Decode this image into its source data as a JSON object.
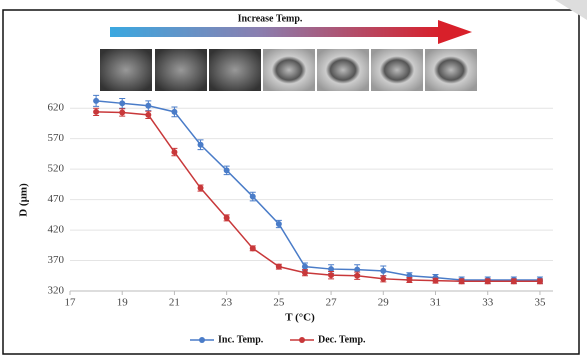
{
  "chart_data": {
    "type": "line",
    "banner": "Increase Temp.",
    "xlabel": "T (°C)",
    "ylabel": "D (µm)",
    "x": [
      18,
      19,
      20,
      21,
      22,
      23,
      24,
      25,
      26,
      27,
      28,
      29,
      30,
      31,
      32,
      33,
      34,
      35
    ],
    "series": [
      {
        "name": "Inc. Temp.",
        "color": "#4a7cc8",
        "values": [
          632,
          628,
          624,
          614,
          560,
          518,
          475,
          430,
          360,
          356,
          355,
          353,
          345,
          342,
          338,
          338,
          338,
          338
        ],
        "errors": [
          9,
          8,
          8,
          8,
          8,
          7,
          7,
          6,
          6,
          7,
          8,
          8,
          5,
          5,
          5,
          5,
          5,
          5
        ]
      },
      {
        "name": "Dec. Temp.",
        "color": "#c8383a",
        "values": [
          614,
          613,
          609,
          548,
          489,
          440,
          390,
          360,
          350,
          346,
          345,
          340,
          338,
          337,
          336,
          336,
          336,
          336
        ],
        "errors": [
          6,
          6,
          6,
          6,
          5,
          5,
          4,
          4,
          5,
          6,
          6,
          5,
          4,
          4,
          4,
          4,
          4,
          4
        ]
      }
    ],
    "xlim": [
      17,
      35.5
    ],
    "xticks": [
      17,
      19,
      21,
      23,
      25,
      27,
      29,
      31,
      33,
      35
    ],
    "ylim": [
      320,
      640
    ],
    "yticks": [
      320,
      370,
      420,
      470,
      520,
      570,
      620
    ],
    "grid": true,
    "legend": "bottom"
  }
}
